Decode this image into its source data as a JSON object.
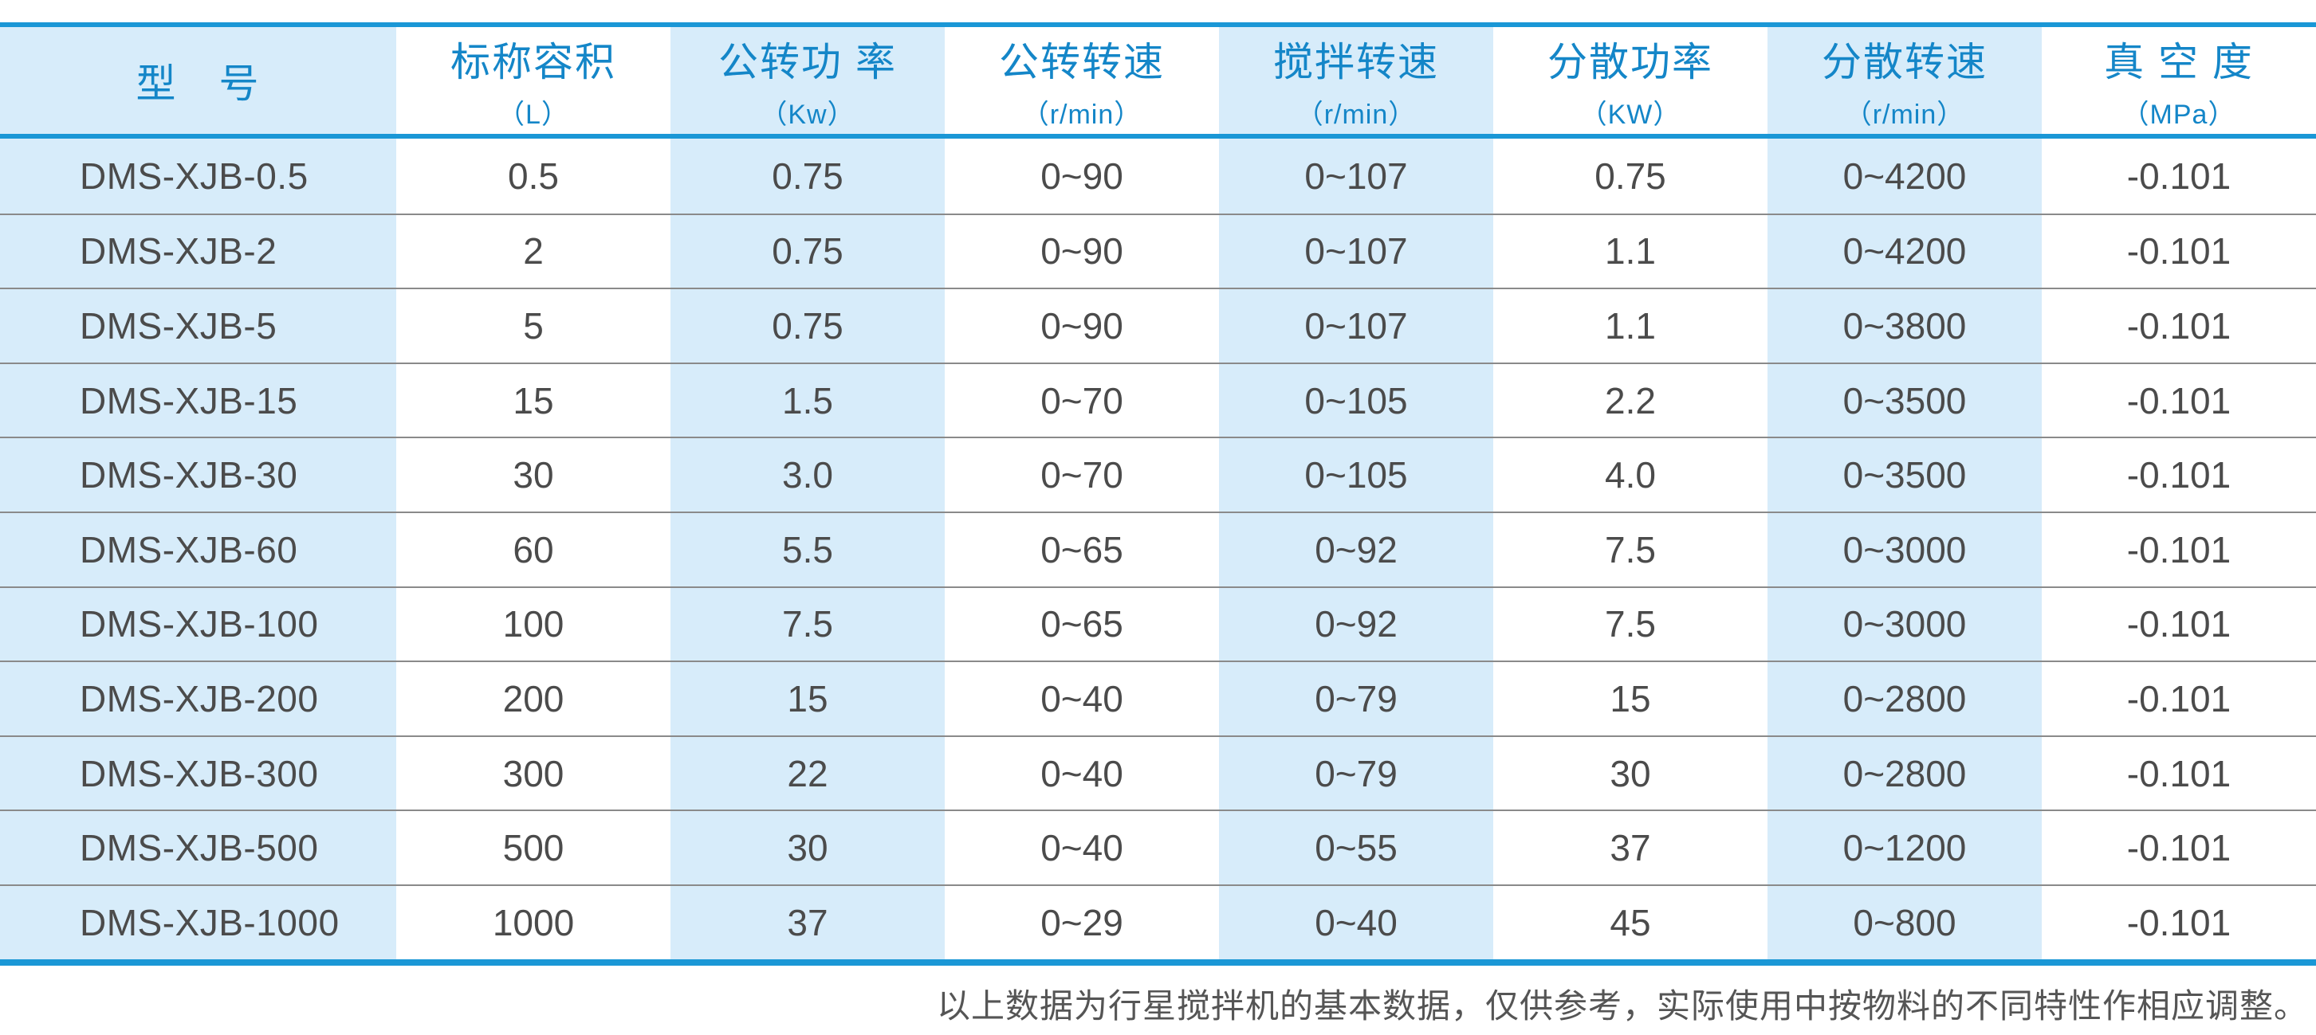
{
  "table": {
    "columns": [
      {
        "key": "model",
        "title": "型　号",
        "unit": ""
      },
      {
        "key": "capacity",
        "title": "标称容积",
        "unit": "（L）"
      },
      {
        "key": "revolution_power",
        "title": "公转功 率",
        "unit": "（Kw）"
      },
      {
        "key": "revolution_speed",
        "title": "公转转速",
        "unit": "（r/min）"
      },
      {
        "key": "stir_speed",
        "title": "搅拌转速",
        "unit": "（r/min）"
      },
      {
        "key": "dispersion_power",
        "title": "分散功率",
        "unit": "（KW）"
      },
      {
        "key": "dispersion_speed",
        "title": "分散转速",
        "unit": "（r/min）"
      },
      {
        "key": "vacuum",
        "title": "真 空 度",
        "unit": "（MPa）"
      }
    ],
    "rows": [
      [
        "DMS-XJB-0.5",
        "0.5",
        "0.75",
        "0~90",
        "0~107",
        "0.75",
        "0~4200",
        "-0.101"
      ],
      [
        "DMS-XJB-2",
        "2",
        "0.75",
        "0~90",
        "0~107",
        "1.1",
        "0~4200",
        "-0.101"
      ],
      [
        "DMS-XJB-5",
        "5",
        "0.75",
        "0~90",
        "0~107",
        "1.1",
        "0~3800",
        "-0.101"
      ],
      [
        "DMS-XJB-15",
        "15",
        "1.5",
        "0~70",
        "0~105",
        "2.2",
        "0~3500",
        "-0.101"
      ],
      [
        "DMS-XJB-30",
        "30",
        "3.0",
        "0~70",
        "0~105",
        "4.0",
        "0~3500",
        "-0.101"
      ],
      [
        "DMS-XJB-60",
        "60",
        "5.5",
        "0~65",
        "0~92",
        "7.5",
        "0~3000",
        "-0.101"
      ],
      [
        "DMS-XJB-100",
        "100",
        "7.5",
        "0~65",
        "0~92",
        "7.5",
        "0~3000",
        "-0.101"
      ],
      [
        "DMS-XJB-200",
        "200",
        "15",
        "0~40",
        "0~79",
        "15",
        "0~2800",
        "-0.101"
      ],
      [
        "DMS-XJB-300",
        "300",
        "22",
        "0~40",
        "0~79",
        "30",
        "0~2800",
        "-0.101"
      ],
      [
        "DMS-XJB-500",
        "500",
        "30",
        "0~40",
        "0~55",
        "37",
        "0~1200",
        "-0.101"
      ],
      [
        "DMS-XJB-1000",
        "1000",
        "37",
        "0~29",
        "0~40",
        "45",
        "0~800",
        "-0.101"
      ]
    ]
  },
  "footnote": "以上数据为行星搅拌机的基本数据，仅供参考，实际使用中按物料的不同特性作相应调整。",
  "colors": {
    "border_blue": "#1a97d6",
    "header_text_blue": "#1486c8",
    "stripe_blue": "#d7ecfa",
    "row_separator_gray": "#8a8a8a",
    "data_text_gray": "#4b4b4b"
  }
}
